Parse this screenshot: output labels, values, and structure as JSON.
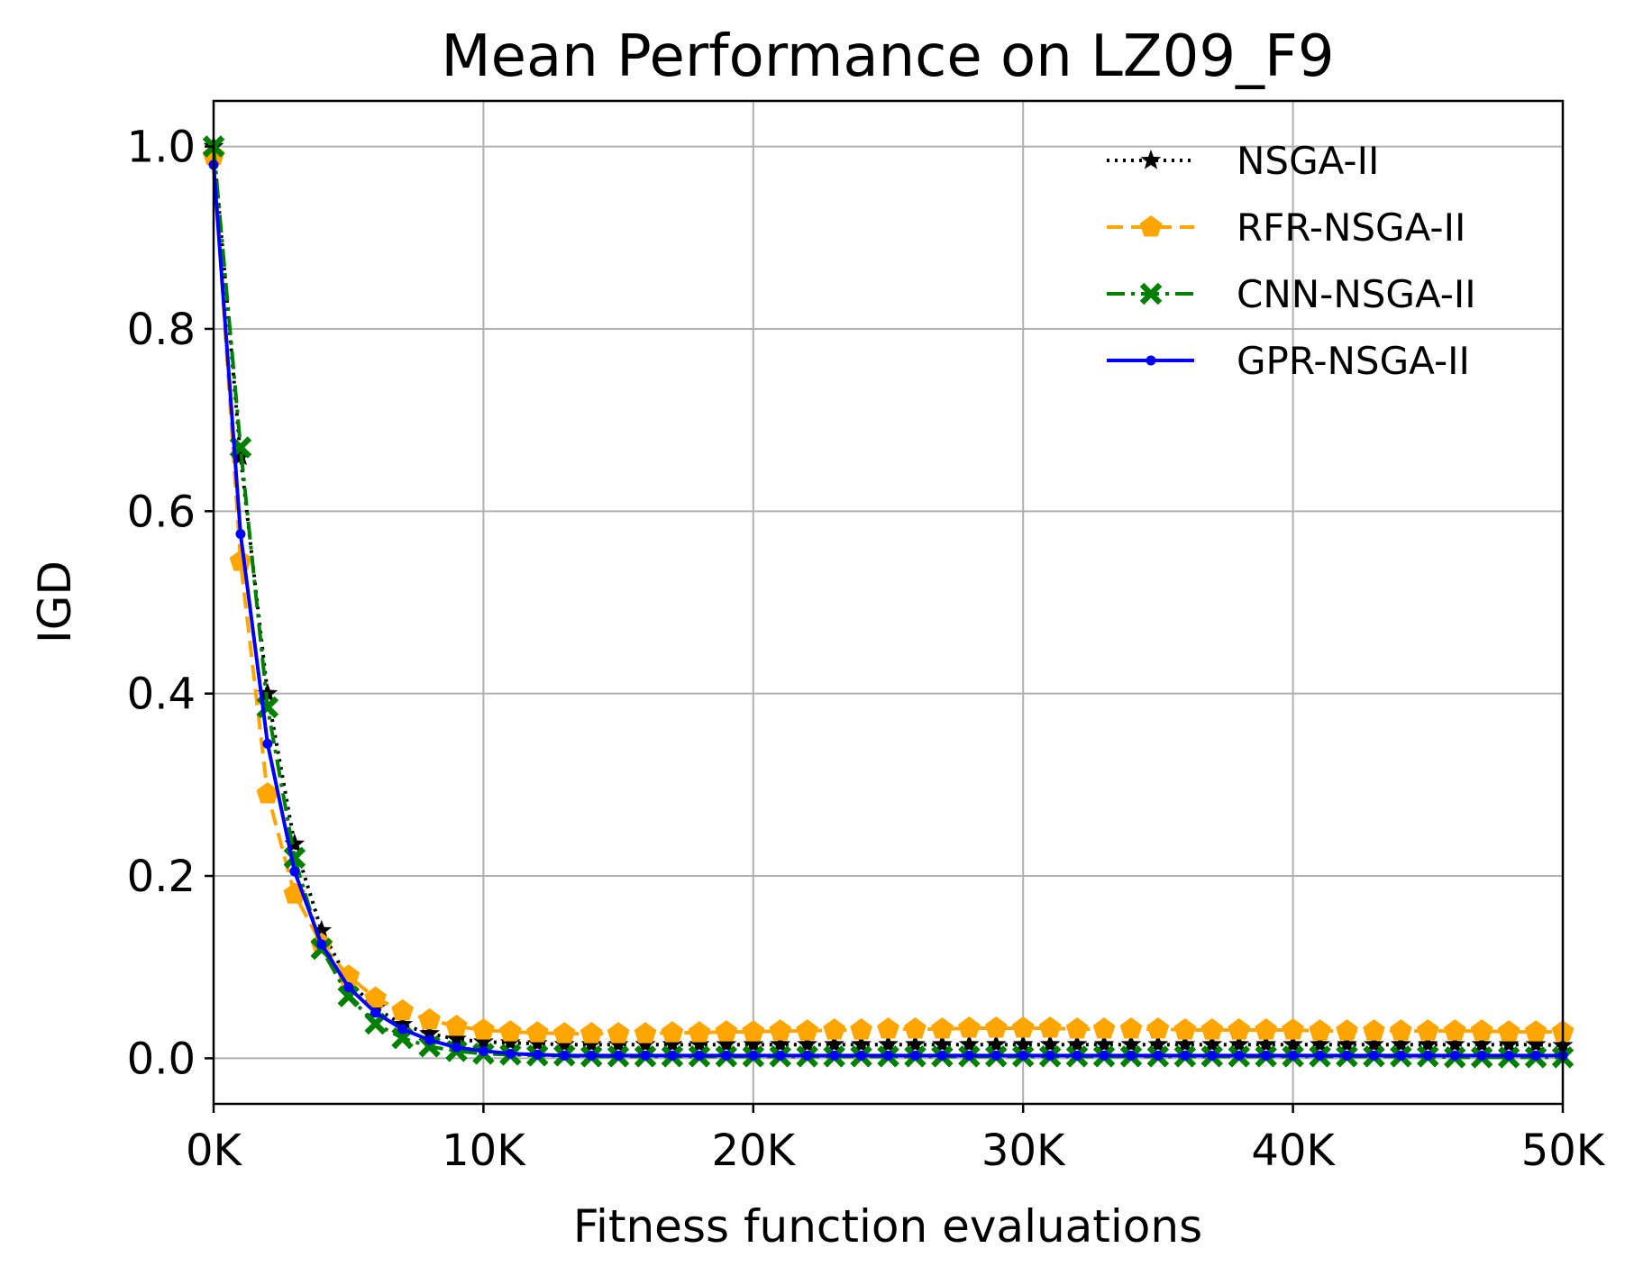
{
  "chart_data": {
    "type": "line",
    "title": "Mean Performance on LZ09_F9",
    "xlabel": "Fitness function evaluations",
    "ylabel": "IGD",
    "xlim": [
      0,
      50000
    ],
    "ylim": [
      -0.05,
      1.05
    ],
    "x_ticks": [
      0,
      10000,
      20000,
      30000,
      40000,
      50000
    ],
    "x_tick_labels": [
      "0K",
      "10K",
      "20K",
      "30K",
      "40K",
      "50K"
    ],
    "y_ticks": [
      0.0,
      0.2,
      0.4,
      0.6,
      0.8,
      1.0
    ],
    "y_tick_labels": [
      "0.0",
      "0.2",
      "0.4",
      "0.6",
      "0.8",
      "1.0"
    ],
    "grid": true,
    "legend_position": "top-right",
    "x": [
      0,
      1000,
      2000,
      3000,
      4000,
      5000,
      6000,
      7000,
      8000,
      9000,
      10000,
      11000,
      12000,
      13000,
      14000,
      15000,
      16000,
      17000,
      18000,
      19000,
      20000,
      21000,
      22000,
      23000,
      24000,
      25000,
      26000,
      27000,
      28000,
      29000,
      30000,
      31000,
      32000,
      33000,
      34000,
      35000,
      36000,
      37000,
      38000,
      39000,
      40000,
      41000,
      42000,
      43000,
      44000,
      45000,
      46000,
      47000,
      48000,
      49000,
      50000
    ],
    "series": [
      {
        "name": "NSGA-II",
        "color": "#000000",
        "line_style": "dotted",
        "marker": "star",
        "values": [
          1.0,
          0.66,
          0.4,
          0.235,
          0.14,
          0.085,
          0.055,
          0.037,
          0.027,
          0.021,
          0.018,
          0.017,
          0.016,
          0.015,
          0.015,
          0.015,
          0.015,
          0.015,
          0.015,
          0.015,
          0.015,
          0.015,
          0.015,
          0.015,
          0.015,
          0.015,
          0.015,
          0.015,
          0.015,
          0.015,
          0.015,
          0.015,
          0.015,
          0.015,
          0.015,
          0.015,
          0.015,
          0.015,
          0.015,
          0.015,
          0.015,
          0.015,
          0.015,
          0.015,
          0.015,
          0.015,
          0.015,
          0.015,
          0.015,
          0.015,
          0.014
        ]
      },
      {
        "name": "RFR-NSGA-II",
        "color": "#ffa500",
        "line_style": "dashed",
        "marker": "pentagon",
        "values": [
          0.99,
          0.545,
          0.29,
          0.18,
          0.125,
          0.09,
          0.066,
          0.052,
          0.042,
          0.035,
          0.031,
          0.029,
          0.028,
          0.027,
          0.027,
          0.027,
          0.027,
          0.028,
          0.028,
          0.029,
          0.029,
          0.03,
          0.03,
          0.031,
          0.031,
          0.032,
          0.032,
          0.032,
          0.033,
          0.033,
          0.033,
          0.033,
          0.032,
          0.032,
          0.032,
          0.032,
          0.031,
          0.031,
          0.031,
          0.031,
          0.031,
          0.03,
          0.03,
          0.03,
          0.03,
          0.03,
          0.03,
          0.03,
          0.029,
          0.029,
          0.029
        ]
      },
      {
        "name": "CNN-NSGA-II",
        "color": "#008000",
        "line_style": "dashdot",
        "marker": "x",
        "values": [
          1.0,
          0.67,
          0.385,
          0.22,
          0.12,
          0.068,
          0.038,
          0.022,
          0.013,
          0.008,
          0.005,
          0.004,
          0.003,
          0.003,
          0.002,
          0.002,
          0.002,
          0.002,
          0.002,
          0.002,
          0.002,
          0.002,
          0.002,
          0.002,
          0.002,
          0.002,
          0.002,
          0.002,
          0.002,
          0.002,
          0.002,
          0.002,
          0.002,
          0.002,
          0.002,
          0.002,
          0.002,
          0.002,
          0.002,
          0.002,
          0.002,
          0.002,
          0.002,
          0.002,
          0.002,
          0.002,
          0.001,
          0.001,
          0.001,
          0.001,
          0.001
        ]
      },
      {
        "name": "GPR-NSGA-II",
        "color": "#0000ff",
        "line_style": "solid",
        "marker": "dot",
        "values": [
          0.98,
          0.575,
          0.345,
          0.205,
          0.125,
          0.078,
          0.05,
          0.032,
          0.02,
          0.012,
          0.008,
          0.005,
          0.004,
          0.003,
          0.003,
          0.003,
          0.003,
          0.003,
          0.003,
          0.003,
          0.003,
          0.003,
          0.003,
          0.003,
          0.003,
          0.003,
          0.003,
          0.003,
          0.003,
          0.003,
          0.003,
          0.003,
          0.003,
          0.003,
          0.003,
          0.003,
          0.003,
          0.003,
          0.003,
          0.003,
          0.003,
          0.003,
          0.003,
          0.003,
          0.003,
          0.003,
          0.003,
          0.003,
          0.003,
          0.003,
          0.003
        ]
      }
    ]
  }
}
